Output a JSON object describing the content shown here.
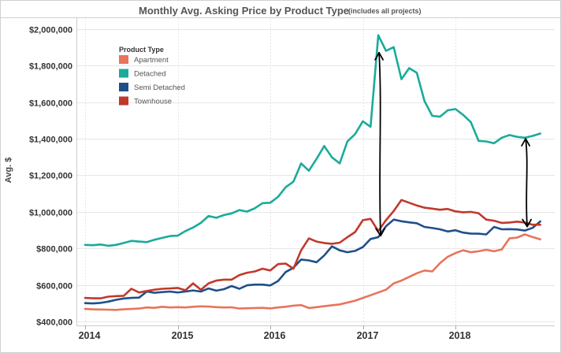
{
  "chart_data": {
    "type": "line",
    "title": "Monthly Avg. Asking Price by Product Type",
    "subtitle": "(includes all projects)",
    "xlabel": "",
    "ylabel": "Avg. $",
    "x_ticks": [
      "2014",
      "2015",
      "2016",
      "2017",
      "2018"
    ],
    "y_ticks": [
      "$400,000",
      "$600,000",
      "$800,000",
      "$1,000,000",
      "$1,200,000",
      "$1,400,000",
      "$1,600,000",
      "$1,800,000",
      "$2,000,000"
    ],
    "ylim": [
      380000,
      2080000
    ],
    "xlim": [
      "2014-01",
      "2018-12"
    ],
    "grid": true,
    "legend_title": "Product Type",
    "legend_position": "top-left",
    "x": [
      "2014-01",
      "2014-02",
      "2014-03",
      "2014-04",
      "2014-05",
      "2014-06",
      "2014-07",
      "2014-08",
      "2014-09",
      "2014-10",
      "2014-11",
      "2014-12",
      "2015-01",
      "2015-02",
      "2015-03",
      "2015-04",
      "2015-05",
      "2015-06",
      "2015-07",
      "2015-08",
      "2015-09",
      "2015-10",
      "2015-11",
      "2015-12",
      "2016-01",
      "2016-02",
      "2016-03",
      "2016-04",
      "2016-05",
      "2016-06",
      "2016-07",
      "2016-08",
      "2016-09",
      "2016-10",
      "2016-11",
      "2016-12",
      "2017-01",
      "2017-02",
      "2017-03",
      "2017-04",
      "2017-05",
      "2017-06",
      "2017-07",
      "2017-08",
      "2017-09",
      "2017-10",
      "2017-11",
      "2017-12",
      "2018-01",
      "2018-02",
      "2018-03",
      "2018-04",
      "2018-05",
      "2018-06",
      "2018-07",
      "2018-08",
      "2018-09",
      "2018-10",
      "2018-11",
      "2018-12"
    ],
    "series": [
      {
        "name": "Apartment",
        "color": "#e8745a",
        "values": [
          470000,
          468000,
          467000,
          466000,
          465000,
          468000,
          470000,
          472000,
          478000,
          476000,
          482000,
          478000,
          480000,
          478000,
          482000,
          484000,
          483000,
          480000,
          478000,
          479000,
          472000,
          474000,
          475000,
          476000,
          473000,
          478000,
          482000,
          488000,
          491000,
          475000,
          480000,
          485000,
          490000,
          495000,
          505000,
          515000,
          530000,
          545000,
          560000,
          575000,
          610000,
          625000,
          645000,
          665000,
          680000,
          675000,
          720000,
          755000,
          775000,
          790000,
          780000,
          785000,
          793000,
          785000,
          795000,
          855000,
          860000,
          877000,
          863000,
          850000
        ]
      },
      {
        "name": "Detached",
        "color": "#1aab9b",
        "values": [
          820000,
          818000,
          822000,
          815000,
          820000,
          830000,
          842000,
          838000,
          835000,
          848000,
          858000,
          868000,
          870000,
          895000,
          915000,
          940000,
          978000,
          968000,
          983000,
          992000,
          1010000,
          1002000,
          1020000,
          1048000,
          1050000,
          1082000,
          1135000,
          1165000,
          1265000,
          1225000,
          1290000,
          1360000,
          1298000,
          1265000,
          1385000,
          1425000,
          1495000,
          1465000,
          1965000,
          1880000,
          1900000,
          1725000,
          1785000,
          1760000,
          1605000,
          1525000,
          1520000,
          1555000,
          1562000,
          1530000,
          1490000,
          1388000,
          1385000,
          1375000,
          1405000,
          1420000,
          1410000,
          1405000,
          1415000,
          1428000
        ]
      },
      {
        "name": "Semi Detached",
        "color": "#1f4f8a",
        "values": [
          502000,
          500000,
          503000,
          510000,
          520000,
          527000,
          530000,
          532000,
          565000,
          558000,
          562000,
          565000,
          560000,
          565000,
          571000,
          565000,
          582000,
          570000,
          578000,
          595000,
          580000,
          599000,
          603000,
          603000,
          598000,
          622000,
          672000,
          695000,
          740000,
          735000,
          725000,
          762000,
          812000,
          790000,
          780000,
          787000,
          808000,
          852000,
          862000,
          922000,
          958000,
          949000,
          943000,
          938000,
          918000,
          912000,
          905000,
          893000,
          900000,
          887000,
          882000,
          881000,
          877000,
          918000,
          905000,
          906000,
          904000,
          898000,
          913000,
          948000
        ]
      },
      {
        "name": "Townhouse",
        "color": "#c0392b",
        "values": [
          530000,
          528000,
          528000,
          537000,
          540000,
          542000,
          580000,
          560000,
          568000,
          575000,
          580000,
          582000,
          585000,
          572000,
          610000,
          575000,
          610000,
          625000,
          630000,
          630000,
          655000,
          668000,
          675000,
          690000,
          680000,
          715000,
          718000,
          690000,
          790000,
          855000,
          838000,
          830000,
          826000,
          832000,
          862000,
          890000,
          955000,
          962000,
          895000,
          955000,
          1005000,
          1065000,
          1050000,
          1035000,
          1023000,
          1018000,
          1012000,
          1016000,
          1003000,
          998000,
          1000000,
          993000,
          958000,
          952000,
          940000,
          942000,
          947000,
          942000,
          930000,
          930000
        ]
      }
    ],
    "annotations": [
      {
        "type": "double-arrow",
        "date": "2017-03",
        "from_value": 1870000,
        "to_value": 870000,
        "color": "#000000"
      },
      {
        "type": "double-arrow",
        "date": "2018-10",
        "from_value": 1400000,
        "to_value": 920000,
        "color": "#000000"
      }
    ]
  }
}
